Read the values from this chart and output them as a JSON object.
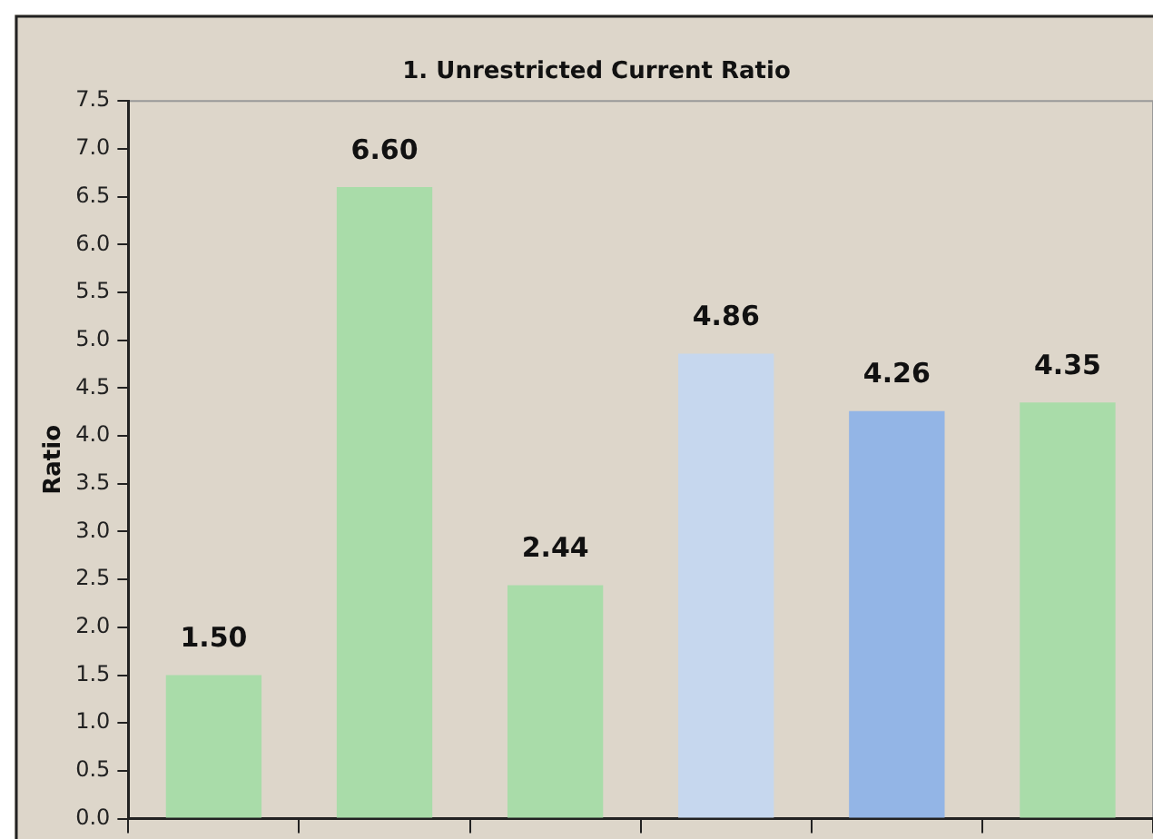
{
  "chart_data": {
    "type": "bar",
    "title": "1. Unrestricted Current Ratio",
    "ylabel": "Ratio",
    "categories": [
      null,
      null,
      null,
      null,
      null,
      null
    ],
    "values": [
      1.5,
      6.6,
      2.44,
      4.86,
      4.26,
      4.35
    ],
    "value_labels": [
      "1.50",
      "6.60",
      "2.44",
      "4.86",
      "4.26",
      "4.35"
    ],
    "colors": [
      "#a9dca9",
      "#a9dca9",
      "#a9dca9",
      "#c6d7ee",
      "#93b5e6",
      "#a9dca9"
    ],
    "ylim": [
      0,
      7.5
    ],
    "yticks": [
      {
        "value": 0,
        "label": "0.0"
      },
      0.5,
      {
        "value": 1,
        "label": "1.0"
      },
      1.5,
      {
        "value": 2,
        "label": "2.0"
      },
      2.5,
      {
        "value": 3,
        "label": "3.0"
      },
      3.5,
      {
        "value": 4,
        "label": "4.0"
      },
      4.5,
      {
        "value": 5,
        "label": "5.0"
      },
      5.5,
      {
        "value": 6,
        "label": "6.0"
      },
      6.5,
      {
        "value": 7,
        "label": "7.0"
      },
      7.5
    ],
    "grid": false,
    "legend": false
  }
}
